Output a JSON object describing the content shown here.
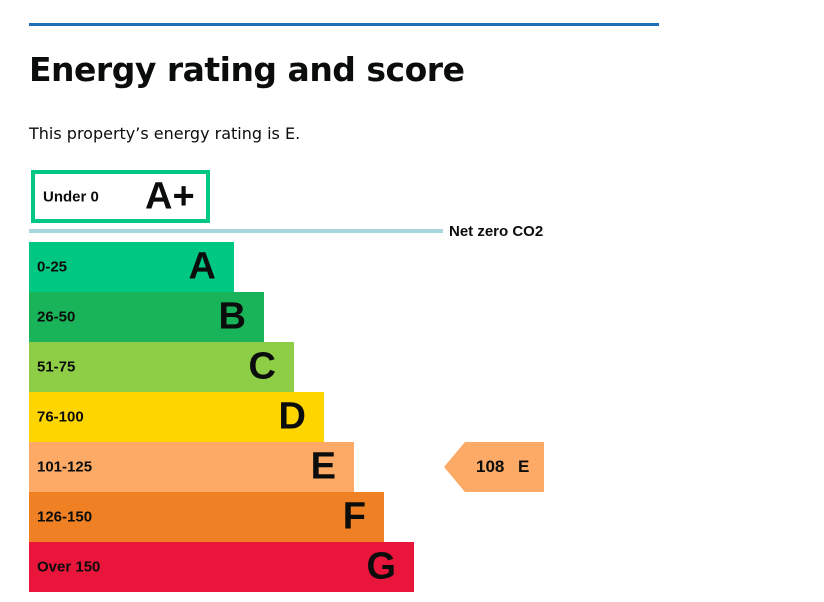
{
  "header": {
    "title": "Energy rating and score",
    "intro": "This property’s energy rating is E."
  },
  "chart_data": {
    "type": "bar",
    "title": "Energy rating and score",
    "top_band": {
      "range": "Under 0",
      "letter": "A+",
      "color": "#00c781"
    },
    "reference_line": {
      "label": "Net zero CO2",
      "color": "#a8d6e0"
    },
    "bands": [
      {
        "range": "0-25",
        "letter": "A",
        "color": "#00c781"
      },
      {
        "range": "26-50",
        "letter": "B",
        "color": "#19b459"
      },
      {
        "range": "51-75",
        "letter": "C",
        "color": "#8dce46"
      },
      {
        "range": "76-100",
        "letter": "D",
        "color": "#ffd500"
      },
      {
        "range": "101-125",
        "letter": "E",
        "color": "#fcaa65"
      },
      {
        "range": "126-150",
        "letter": "F",
        "color": "#ef8023"
      },
      {
        "range": "Over 150",
        "letter": "G",
        "color": "#e9153b"
      }
    ],
    "current": {
      "score": "108",
      "letter": "E",
      "band_index": 4
    }
  }
}
